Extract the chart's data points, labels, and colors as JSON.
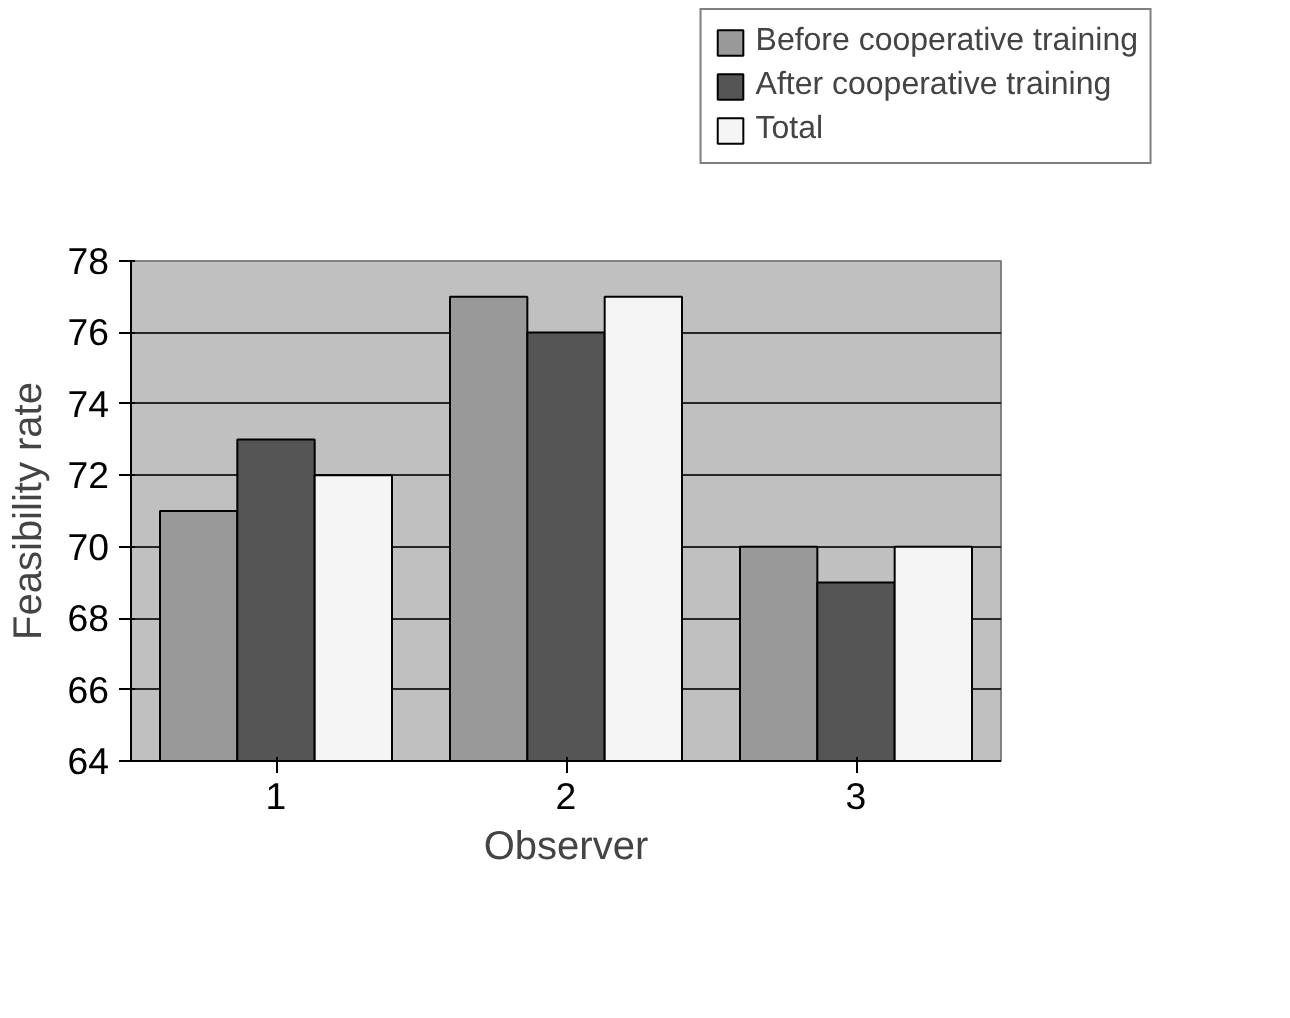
{
  "chart_data": {
    "type": "bar",
    "xlabel": "Observer",
    "ylabel": "Feasibility rate",
    "categories": [
      "1",
      "2",
      "3"
    ],
    "series": [
      {
        "name": "Before cooperative training",
        "color": "#999999",
        "values": [
          71,
          77,
          70
        ]
      },
      {
        "name": "After cooperative training",
        "color": "#555555",
        "values": [
          73,
          76,
          69
        ]
      },
      {
        "name": "Total",
        "color": "#f5f5f5",
        "values": [
          72,
          77,
          70
        ]
      }
    ],
    "ylim": [
      64,
      78
    ],
    "yticks": [
      64,
      66,
      68,
      70,
      72,
      74,
      76,
      78
    ],
    "grid": "y",
    "legend": "top right"
  }
}
